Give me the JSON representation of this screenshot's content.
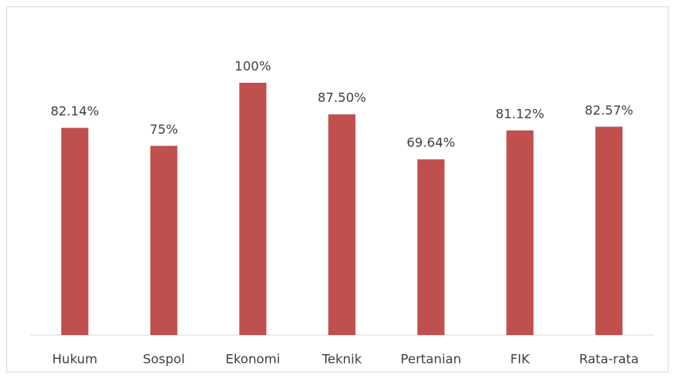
{
  "chart_data": {
    "type": "bar",
    "categories": [
      "Hukum",
      "Sospol",
      "Ekonomi",
      "Teknik",
      "Pertanian",
      "FIK",
      "Rata-rata"
    ],
    "values": [
      82.14,
      75,
      100,
      87.5,
      69.64,
      81.12,
      82.57
    ],
    "value_labels": [
      "82.14%",
      "75%",
      "100%",
      "87.50%",
      "69.64%",
      "81.12%",
      "82.57%"
    ],
    "color": "#c0504d"
  }
}
